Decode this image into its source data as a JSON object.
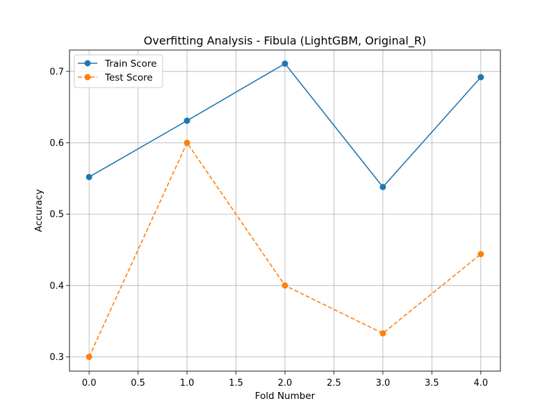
{
  "chart_data": {
    "type": "line",
    "title": "Overfitting Analysis - Fibula (LightGBM, Original_R)",
    "xlabel": "Fold Number",
    "ylabel": "Accuracy",
    "x": [
      0,
      1,
      2,
      3,
      4
    ],
    "xlim": [
      -0.2,
      4.2
    ],
    "ylim": [
      0.28,
      0.73
    ],
    "xticks": [
      0.0,
      0.5,
      1.0,
      1.5,
      2.0,
      2.5,
      3.0,
      3.5,
      4.0
    ],
    "xtick_labels": [
      "0.0",
      "0.5",
      "1.0",
      "1.5",
      "2.0",
      "2.5",
      "3.0",
      "3.5",
      "4.0"
    ],
    "yticks": [
      0.3,
      0.4,
      0.5,
      0.6,
      0.7
    ],
    "ytick_labels": [
      "0.3",
      "0.4",
      "0.5",
      "0.6",
      "0.7"
    ],
    "grid": true,
    "legend_position": "top-left",
    "series": [
      {
        "name": "Train Score",
        "values": [
          0.552,
          0.631,
          0.711,
          0.538,
          0.692
        ],
        "color": "#1f77b4",
        "line_style": "solid",
        "marker": "circle"
      },
      {
        "name": "Test Score",
        "values": [
          0.3,
          0.6,
          0.4,
          0.333,
          0.444
        ],
        "color": "#ff7f0e",
        "line_style": "dashed",
        "marker": "circle"
      }
    ]
  }
}
